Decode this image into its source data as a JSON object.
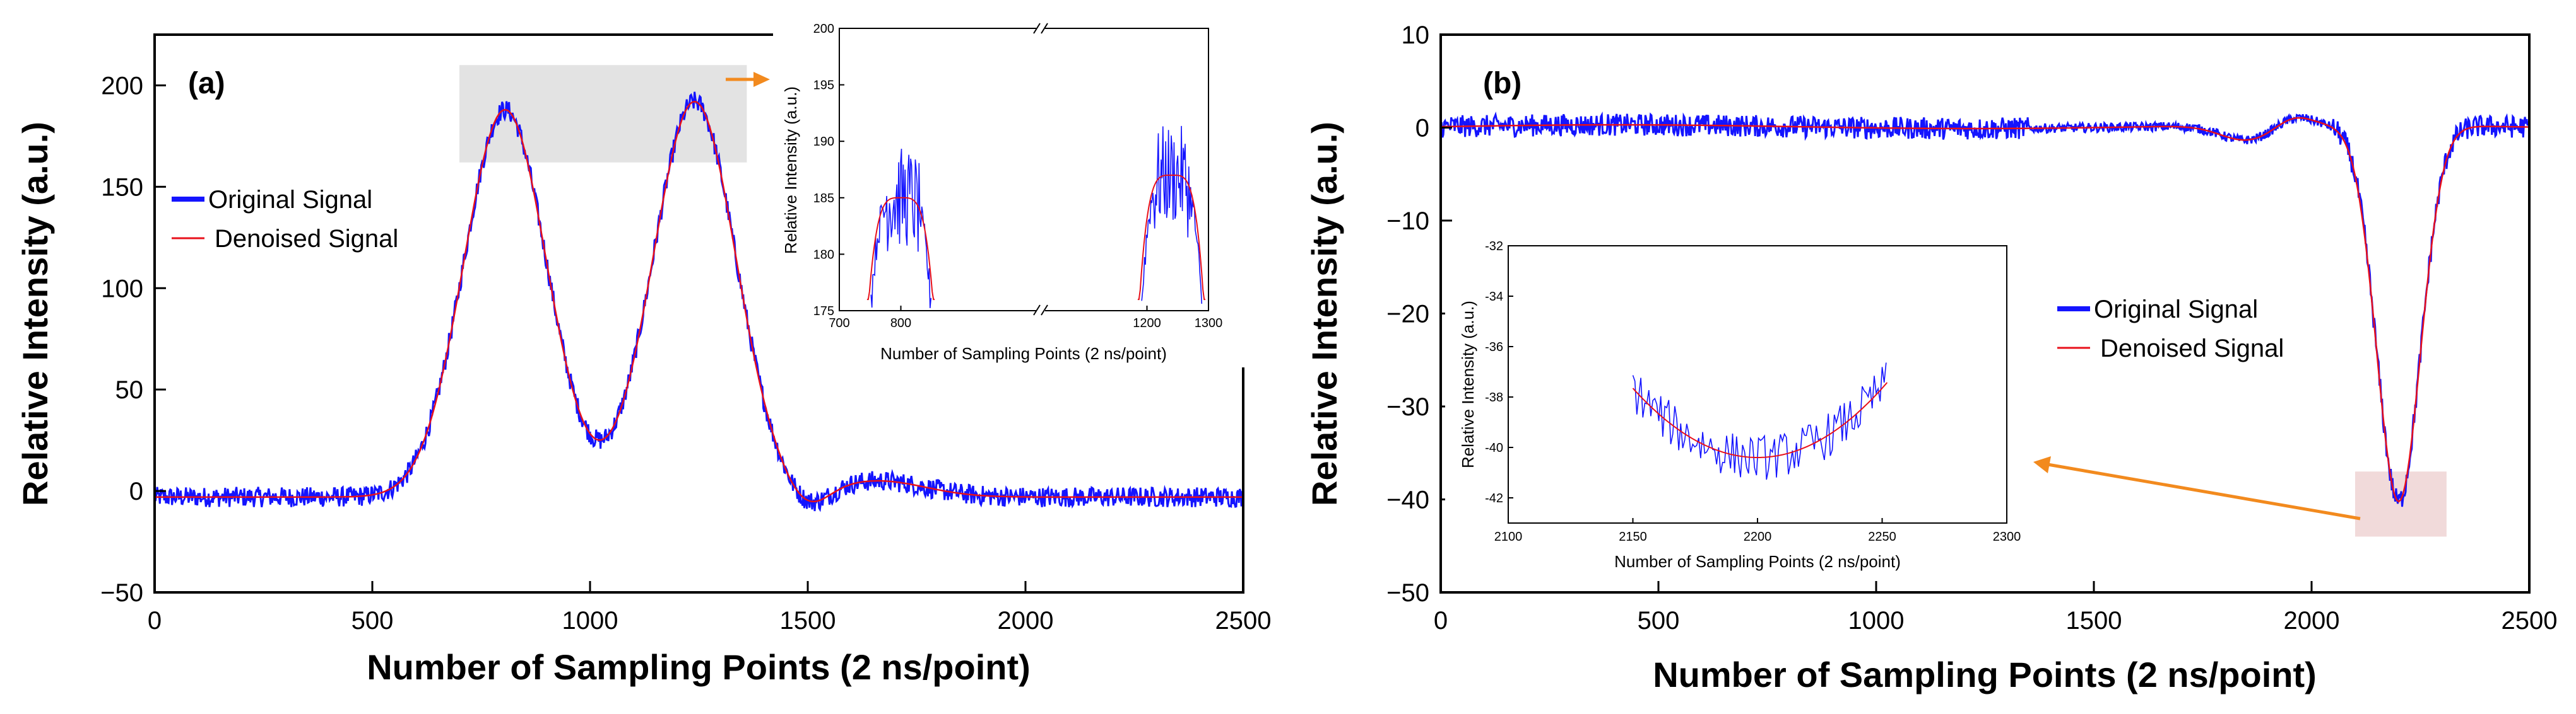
{
  "colors": {
    "original": "#1414ff",
    "denoised": "#e8101a",
    "arrow": "#f28a1e",
    "highlight": "#e3e3e3",
    "highlight_b": "#f1dada"
  },
  "chart_data": [
    {
      "type": "line",
      "panel_label": "(a)",
      "xlabel": "Number of Sampling Points (2 ns/point)",
      "ylabel": "Relative Intensity (a.u.)",
      "xlim": [
        0,
        2500
      ],
      "ylim": [
        -50,
        225
      ],
      "xticks": [
        0,
        500,
        1000,
        1500,
        2000,
        2500
      ],
      "xtick_labels": [
        "0",
        "500",
        "1000",
        "1500",
        "2000",
        "2500"
      ],
      "yticks": [
        -50,
        0,
        50,
        100,
        150,
        200
      ],
      "ytick_labels": [
        "−50",
        "0",
        "50",
        "100",
        "150",
        "200"
      ],
      "series": [
        {
          "name": "Original Signal",
          "noise": 5,
          "baseline": -3,
          "peaks": [
            {
              "center": 805,
              "amp": 191,
              "width": 95
            },
            {
              "center": 1240,
              "amp": 195,
              "width": 95
            },
            {
              "center": 1660,
              "amp": 8,
              "width": 110
            }
          ],
          "dips": [
            {
              "center": 1500,
              "amp": 9,
              "width": 45
            }
          ]
        },
        {
          "name": "Denoised Signal",
          "noise": 0,
          "baseline": -3,
          "peaks": [
            {
              "center": 805,
              "amp": 191,
              "width": 95
            },
            {
              "center": 1240,
              "amp": 195,
              "width": 95
            },
            {
              "center": 1660,
              "amp": 8,
              "width": 110
            }
          ],
          "dips": [
            {
              "center": 1500,
              "amp": 9,
              "width": 45
            }
          ]
        }
      ],
      "highlight_region": {
        "x": [
          700,
          1360
        ],
        "y": [
          162,
          210
        ]
      },
      "legend": {
        "placement": "left-middle",
        "entries": [
          "Original Signal",
          "Denoised Signal"
        ]
      },
      "inset": {
        "xlabel": "Number of Sampling Points (2 ns/point)",
        "ylabel": "Relative Intensity (a.u.)",
        "xlim": [
          700,
          1300
        ],
        "ylim": [
          175,
          200
        ],
        "xticks": [
          700,
          800,
          1200,
          1300
        ],
        "xtick_labels": [
          "700",
          "800",
          "1200",
          "1300"
        ],
        "yticks": [
          175,
          180,
          185,
          190,
          195,
          200
        ],
        "ytick_labels": [
          "175",
          "180",
          "185",
          "190",
          "195",
          "200"
        ],
        "axis_break_between": [
          900,
          1100
        ],
        "axis_break_symbol": "//"
      }
    },
    {
      "type": "line",
      "panel_label": "(b)",
      "xlabel": "Number of Sampling Points (2 ns/point)",
      "ylabel": "Relative Intensity (a.u.)",
      "xlim": [
        0,
        2500
      ],
      "ylim": [
        -50,
        10
      ],
      "xticks": [
        0,
        500,
        1000,
        1500,
        2000,
        2500
      ],
      "xtick_labels": [
        "0",
        "500",
        "1000",
        "1500",
        "2000",
        "2500"
      ],
      "yticks": [
        -50,
        -40,
        -30,
        -20,
        -10,
        0,
        10
      ],
      "ytick_labels": [
        "−50",
        "−40",
        "−30",
        "−20",
        "−10",
        "0",
        "10"
      ],
      "series": [
        {
          "name": "Original Signal",
          "noise": 1.2
        },
        {
          "name": "Denoised Signal",
          "noise": 0
        }
      ],
      "dip": {
        "center": 2200,
        "depth": 40.5,
        "width": 50
      },
      "small_dip": {
        "center": 1850,
        "depth": 1.6,
        "width": 60
      },
      "small_bump": {
        "center": 1960,
        "amp": 1.0,
        "width": 40
      },
      "highlight_region": {
        "x": [
          2100,
          2310
        ],
        "y": [
          -44,
          -37
        ]
      },
      "legend": {
        "placement": "right-middle",
        "entries": [
          "Original Signal",
          "Denoised Signal"
        ]
      },
      "inset": {
        "xlabel": "Number of Sampling Points (2 ns/point)",
        "ylabel": "Relative Intensity (a.u.)",
        "xlim": [
          2100,
          2300
        ],
        "ylim": [
          -43,
          -32
        ],
        "xticks": [
          2100,
          2150,
          2200,
          2250,
          2300
        ],
        "xtick_labels": [
          "2100",
          "2150",
          "2200",
          "2250",
          "2300"
        ],
        "yticks": [
          -42,
          -40,
          -38,
          -36,
          -34,
          -32
        ],
        "ytick_labels": [
          "-42",
          "-40",
          "-38",
          "-36",
          "-34",
          "-32"
        ]
      }
    }
  ]
}
